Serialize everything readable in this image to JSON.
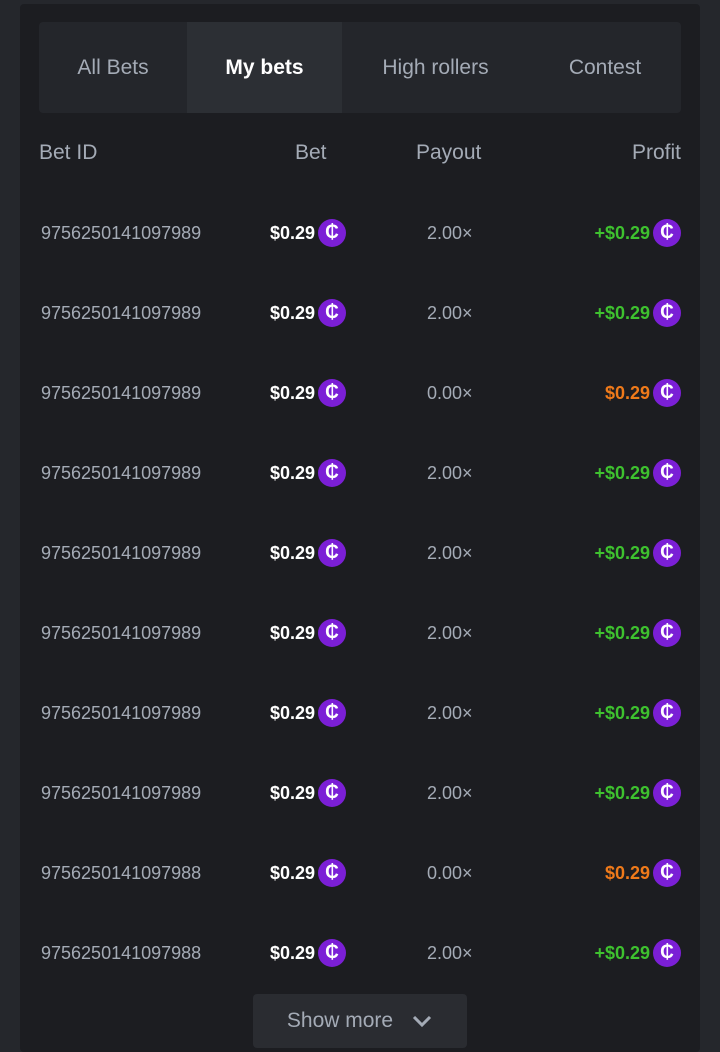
{
  "tabs": [
    "All Bets",
    "My bets",
    "High rollers",
    "Contest"
  ],
  "active_tab": 1,
  "columns": {
    "bet_id": "Bet ID",
    "bet": "Bet",
    "payout": "Payout",
    "profit": "Profit"
  },
  "colors": {
    "win": "#3ec22f",
    "loss": "#ef7a1a",
    "coin": "#7b1fd6"
  },
  "rows": [
    {
      "id": "9756250141097989",
      "bet": "$0.29",
      "payout": "2.00×",
      "profit": "+$0.29",
      "result": "win"
    },
    {
      "id": "9756250141097989",
      "bet": "$0.29",
      "payout": "2.00×",
      "profit": "+$0.29",
      "result": "win"
    },
    {
      "id": "9756250141097989",
      "bet": "$0.29",
      "payout": "0.00×",
      "profit": "$0.29",
      "result": "loss"
    },
    {
      "id": "9756250141097989",
      "bet": "$0.29",
      "payout": "2.00×",
      "profit": "+$0.29",
      "result": "win"
    },
    {
      "id": "9756250141097989",
      "bet": "$0.29",
      "payout": "2.00×",
      "profit": "+$0.29",
      "result": "win"
    },
    {
      "id": "9756250141097989",
      "bet": "$0.29",
      "payout": "2.00×",
      "profit": "+$0.29",
      "result": "win"
    },
    {
      "id": "9756250141097989",
      "bet": "$0.29",
      "payout": "2.00×",
      "profit": "+$0.29",
      "result": "win"
    },
    {
      "id": "9756250141097989",
      "bet": "$0.29",
      "payout": "2.00×",
      "profit": "+$0.29",
      "result": "win"
    },
    {
      "id": "9756250141097988",
      "bet": "$0.29",
      "payout": "0.00×",
      "profit": "$0.29",
      "result": "loss"
    },
    {
      "id": "9756250141097988",
      "bet": "$0.29",
      "payout": "2.00×",
      "profit": "+$0.29",
      "result": "win"
    }
  ],
  "coin_symbol": "₵",
  "show_more": "Show more"
}
